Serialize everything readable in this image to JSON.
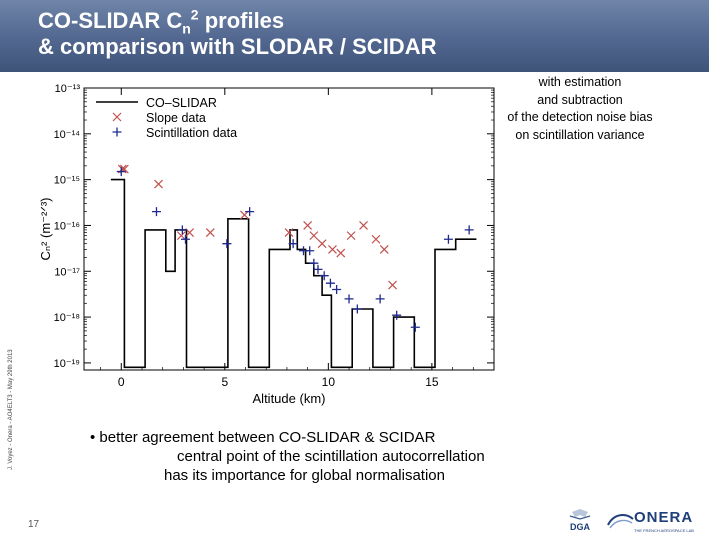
{
  "header": {
    "title_line1_part1": "CO-SLIDAR C",
    "title_line1_sub": "n",
    "title_line1_sup": "2",
    "title_line1_part2": " profiles",
    "title_line2": "& comparison with SLODAR / SCIDAR"
  },
  "side_credit": "J. Voyez - Onera - AO4ELT3 - May 29th 2013",
  "note": {
    "line1": "with estimation",
    "line2": "and subtraction",
    "line3": "of the detection noise bias",
    "line4": "on scintillation variance"
  },
  "bullet": {
    "line1": "• better agreement between CO-SLIDAR & SCIDAR",
    "line2": "central point of the scintillation autocorrellation",
    "line3": "has its importance for global normalisation"
  },
  "slide_number": "17",
  "logos": {
    "dga": "DGA",
    "onera": "ONERA",
    "onera_tag": "THE FRENCH AEROSPACE LAB"
  },
  "colors": {
    "header": "#52678f",
    "slope_marker": "#c0504d",
    "scint_marker": "#1f2a8c",
    "profile_line": "#000000"
  },
  "chart_data": {
    "type": "line",
    "xlabel": "Altitude (km)",
    "ylabel": "Cₙ² (m⁻²ᐟ³)",
    "yscale": "log",
    "xlim": [
      -1.8,
      18
    ],
    "ylim": [
      7e-20,
      1e-13
    ],
    "x_ticks": [
      0,
      5,
      10,
      15
    ],
    "x_tick_labels": [
      "0",
      "5",
      "10",
      "15"
    ],
    "y_ticks": [
      1e-19,
      1e-18,
      1e-17,
      1e-16,
      1e-15,
      1e-14,
      1e-13
    ],
    "y_tick_labels": [
      "10⁻¹⁹",
      "10⁻¹⁸",
      "10⁻¹⁷",
      "10⁻¹⁶",
      "10⁻¹⁵",
      "10⁻¹⁴",
      "10⁻¹³"
    ],
    "legend": {
      "placement": "top-left",
      "entries": [
        "CO–SLIDAR",
        "Slope data",
        "Scintillation data"
      ]
    },
    "series": [
      {
        "name": "CO–SLIDAR",
        "kind": "step",
        "x": [
          -0.5,
          0.15,
          0.15,
          1.15,
          1.15,
          2.15,
          2.15,
          2.6,
          2.6,
          3.15,
          3.15,
          4.15,
          4.15,
          5.15,
          5.15,
          6.15,
          6.15,
          7.15,
          7.15,
          8.15,
          8.15,
          8.5,
          8.5,
          8.9,
          8.9,
          9.3,
          9.3,
          9.7,
          9.7,
          10.15,
          10.15,
          11.15,
          11.15,
          12.15,
          12.15,
          13.15,
          13.15,
          14.15,
          14.15,
          15.15,
          15.15,
          16.15,
          16.15,
          17.15
        ],
        "y": [
          1e-15,
          1e-15,
          8e-20,
          8e-20,
          8e-17,
          8e-17,
          1e-17,
          1e-17,
          8e-17,
          8e-17,
          8e-20,
          8e-20,
          8e-20,
          8e-20,
          1.4e-16,
          1.4e-16,
          8e-20,
          8e-20,
          3e-17,
          3e-17,
          8e-17,
          8e-17,
          3e-17,
          3e-17,
          1.5e-17,
          1.5e-17,
          8e-18,
          8e-18,
          3e-18,
          3e-18,
          8e-20,
          8e-20,
          1.5e-18,
          1.5e-18,
          8e-20,
          8e-20,
          1e-18,
          1e-18,
          8e-20,
          8e-20,
          3e-17,
          3e-17,
          5e-17,
          5e-17
        ]
      },
      {
        "name": "Slope data",
        "kind": "markers",
        "marker": "x",
        "x": [
          0.05,
          1.8,
          2.9,
          3.3,
          4.3,
          5.95,
          8.1,
          9.0,
          9.3,
          9.7,
          10.2,
          10.6,
          11.1,
          11.7,
          12.3,
          12.7,
          13.1,
          0.15
        ],
        "y": [
          1.7e-15,
          8e-16,
          6e-17,
          7e-17,
          7e-17,
          1.7e-16,
          7e-17,
          1e-16,
          6e-17,
          4e-17,
          3e-17,
          2.5e-17,
          6e-17,
          1e-16,
          5e-17,
          3e-17,
          5e-18,
          1.7e-15
        ]
      },
      {
        "name": "Scintillation data",
        "kind": "markers",
        "marker": "+",
        "x": [
          0.0,
          1.7,
          2.95,
          3.1,
          5.1,
          6.2,
          8.3,
          8.8,
          9.1,
          9.3,
          9.5,
          9.8,
          10.1,
          10.4,
          11.0,
          11.4,
          12.5,
          13.3,
          14.2,
          15.8,
          16.8
        ],
        "y": [
          1.5e-15,
          2e-16,
          8e-17,
          5e-17,
          4e-17,
          2e-16,
          4e-17,
          2.8e-17,
          2.8e-17,
          1.5e-17,
          1.1e-17,
          8e-18,
          5.5e-18,
          4e-18,
          2.5e-18,
          1.5e-18,
          2.5e-18,
          1.1e-18,
          6e-19,
          5e-17,
          8e-17
        ]
      }
    ]
  }
}
